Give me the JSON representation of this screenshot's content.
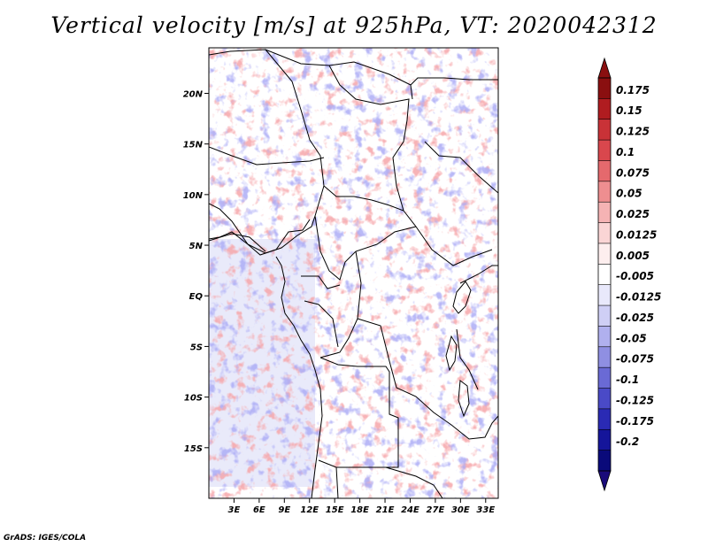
{
  "title": "Vertical velocity [m/s] at 925hPa, VT: 2020042312",
  "credit": "GrADS: IGES/COLA",
  "map": {
    "lat_labels": [
      "20N",
      "15N",
      "10N",
      "5N",
      "EQ",
      "5S",
      "10S",
      "15S"
    ],
    "lat_values": [
      20,
      15,
      10,
      5,
      0,
      -5,
      -10,
      -15
    ],
    "lon_labels": [
      "3E",
      "6E",
      "9E",
      "12E",
      "15E",
      "18E",
      "21E",
      "24E",
      "27E",
      "30E",
      "33E"
    ],
    "lon_values": [
      3,
      6,
      9,
      12,
      15,
      18,
      21,
      24,
      27,
      30,
      33
    ],
    "lon_range": [
      0,
      34.5
    ],
    "lat_range": [
      -20,
      24.5
    ]
  },
  "colorbar": {
    "labels": [
      "0.175",
      "0.15",
      "0.125",
      "0.1",
      "0.075",
      "0.05",
      "0.025",
      "0.0125",
      "0.005",
      "-0.005",
      "-0.0125",
      "-0.025",
      "-0.05",
      "-0.075",
      "-0.1",
      "-0.125",
      "-0.175",
      "-0.2"
    ],
    "colors": [
      "#8a0f10",
      "#b01c20",
      "#c93237",
      "#d9474d",
      "#e5696d",
      "#ee8e90",
      "#f5b3b4",
      "#fad5d5",
      "#fdeeee",
      "#ffffff",
      "#e9e9fb",
      "#cfcff5",
      "#b0b0ee",
      "#8f8fe2",
      "#6a6ad5",
      "#4a4ac7",
      "#2a2ab4",
      "#15159a",
      "#0a0a7a"
    ],
    "top_arrow_color": "#8a0f10",
    "bottom_arrow_color": "#1a0b7a"
  }
}
